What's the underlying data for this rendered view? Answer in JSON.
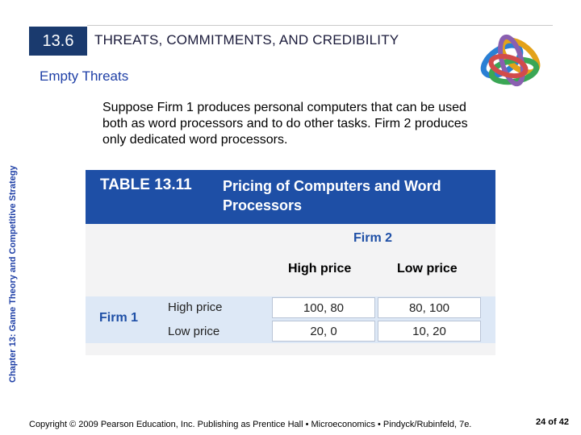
{
  "header": {
    "section_number": "13.6",
    "title": "THREATS, COMMITMENTS, AND CREDIBILITY"
  },
  "subtitle": "Empty Threats",
  "side_label": "Chapter 13:  Game Theory and Competitive Strategy",
  "body_text": "Suppose Firm 1 produces personal computers that can be used both as word processors and to do other tasks. Firm 2 produces only dedicated word processors.",
  "table": {
    "number": "TABLE 13.11",
    "caption": "Pricing of Computers and Word Processors",
    "column_player": "Firm 2",
    "column_headers": [
      "High price",
      "Low price"
    ],
    "row_player": "Firm 1",
    "row_headers": [
      "High price",
      "Low price"
    ],
    "cells": [
      [
        "100, 80",
        "80, 100"
      ],
      [
        "20, 0",
        "10, 20"
      ]
    ]
  },
  "footer": {
    "copyright": "Copyright © 2009 Pearson Education, Inc. Publishing as Prentice Hall • Microeconomics • Pindyck/Rubinfeld, 7e.",
    "page": "24 of 42"
  },
  "colors": {
    "section_box": "#1a3a6e",
    "table_header": "#1e4fa6",
    "accent_text": "#1e3fa6",
    "firm1_band": "#dde8f6"
  }
}
